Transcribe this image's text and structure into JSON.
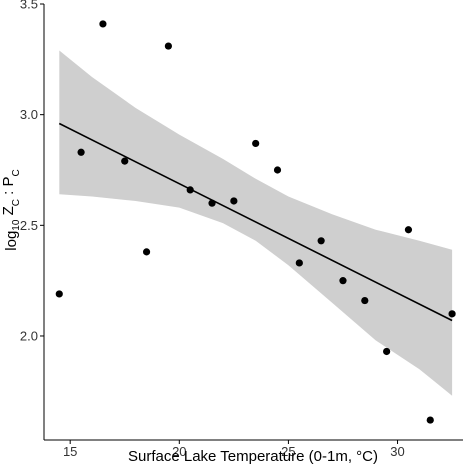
{
  "chart_data": {
    "type": "scatter",
    "title": "",
    "xlabel": "Surface Lake Temperature (0-1m, °C)",
    "ylabel": {
      "base": "log",
      "sub1": "10",
      "mid": " Z",
      "sub2": "C",
      "sep": " : P",
      "sub3": "C"
    },
    "xlim": [
      13.8,
      33.0
    ],
    "ylim": [
      1.53,
      3.5
    ],
    "grid": false,
    "x_ticks": [
      15,
      20,
      25,
      30
    ],
    "y_ticks": [
      2.0,
      2.5,
      3.0,
      3.5
    ],
    "x_tick_labels": [
      "15",
      "20",
      "25",
      "30"
    ],
    "y_tick_labels": [
      "2.0",
      "2.5",
      "3.0",
      "3.5"
    ],
    "points": [
      {
        "x": 14.5,
        "y": 2.19
      },
      {
        "x": 15.5,
        "y": 2.83
      },
      {
        "x": 16.5,
        "y": 3.41
      },
      {
        "x": 17.5,
        "y": 2.79
      },
      {
        "x": 18.5,
        "y": 2.38
      },
      {
        "x": 19.5,
        "y": 3.31
      },
      {
        "x": 20.5,
        "y": 2.66
      },
      {
        "x": 21.5,
        "y": 2.6
      },
      {
        "x": 22.5,
        "y": 2.61
      },
      {
        "x": 23.5,
        "y": 2.87
      },
      {
        "x": 24.5,
        "y": 2.75
      },
      {
        "x": 25.5,
        "y": 2.33
      },
      {
        "x": 26.5,
        "y": 2.43
      },
      {
        "x": 27.5,
        "y": 2.25
      },
      {
        "x": 28.5,
        "y": 2.16
      },
      {
        "x": 29.5,
        "y": 1.93
      },
      {
        "x": 30.5,
        "y": 2.48
      },
      {
        "x": 31.5,
        "y": 1.62
      },
      {
        "x": 32.5,
        "y": 2.1
      }
    ],
    "fit_line": {
      "x": [
        14.5,
        32.5
      ],
      "y": [
        2.96,
        2.07
      ]
    },
    "confidence_band": {
      "x": [
        14.5,
        16,
        18,
        20,
        22,
        23.5,
        25,
        27,
        29,
        31,
        32.5
      ],
      "upper": [
        3.29,
        3.17,
        3.03,
        2.91,
        2.8,
        2.71,
        2.63,
        2.55,
        2.48,
        2.43,
        2.39
      ],
      "lower": [
        2.64,
        2.63,
        2.61,
        2.58,
        2.51,
        2.43,
        2.32,
        2.15,
        1.98,
        1.85,
        1.73
      ]
    },
    "colors": {
      "points": "#000000",
      "fit_line": "#000000",
      "band": "#cfcfcf",
      "axis": "#000000"
    }
  }
}
